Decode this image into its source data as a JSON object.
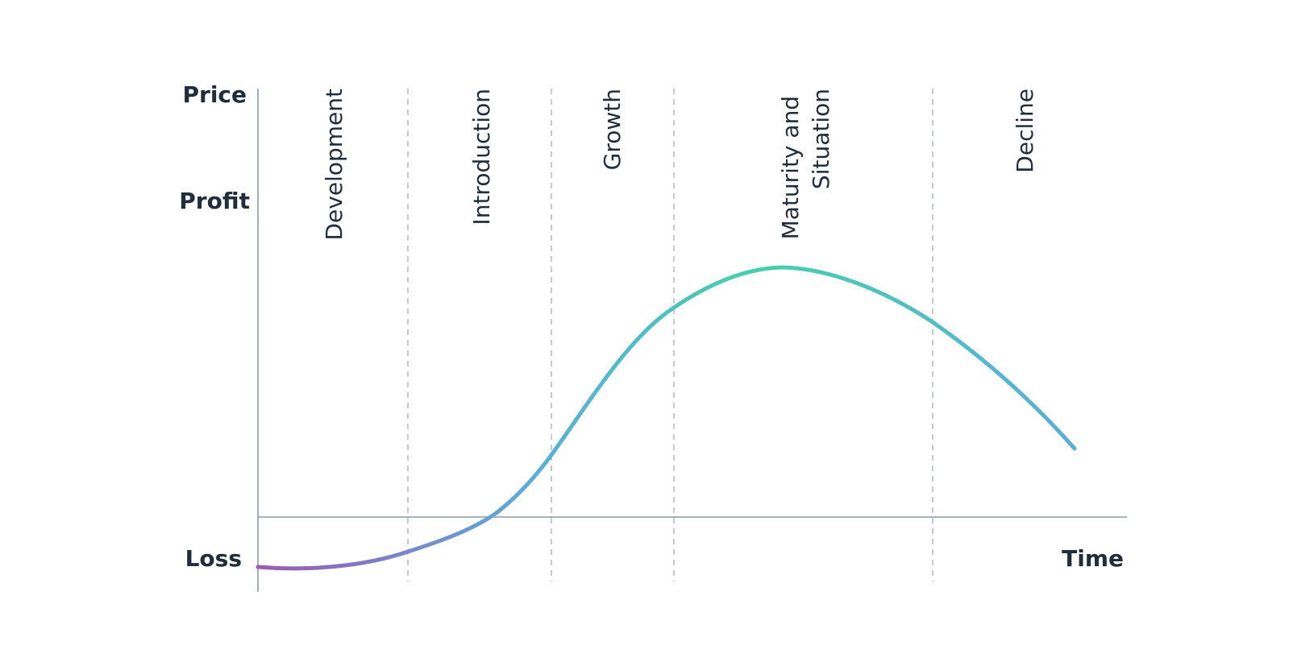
{
  "axes": {
    "price_label": "Price",
    "profit_label": "Profit",
    "loss_label": "Loss",
    "time_label": "Time"
  },
  "phases": [
    {
      "id": "development",
      "lines": [
        "Development"
      ]
    },
    {
      "id": "introduction",
      "lines": [
        "Introduction"
      ]
    },
    {
      "id": "growth",
      "lines": [
        "Growth"
      ]
    },
    {
      "id": "maturity",
      "lines": [
        "Maturity and",
        "Situation"
      ]
    },
    {
      "id": "decline",
      "lines": [
        "Decline"
      ]
    }
  ],
  "colors": {
    "text": "#1f2d3d",
    "axis": "#8a9aaa",
    "divider": "#a8b4bf",
    "curve_start": "#9b59b6",
    "curve_mid": "#5aaed9",
    "curve_peak": "#48cfad",
    "curve_end": "#5aaed9"
  }
}
